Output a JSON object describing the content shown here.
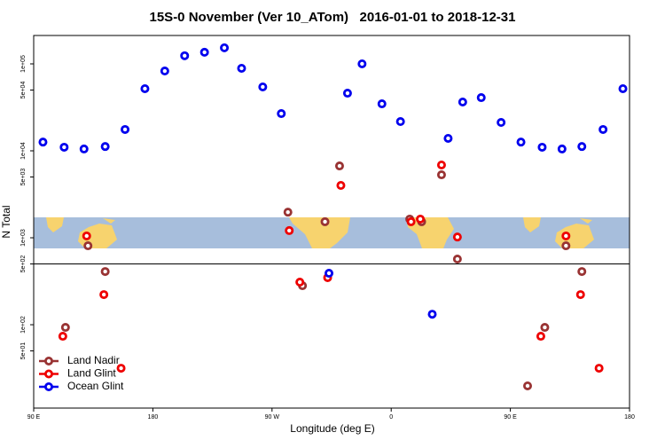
{
  "chart_data": {
    "type": "scatter",
    "title": "15S-0 November (Ver 10_ATom)   2016-01-01 to 2018-12-31",
    "xlabel": "Longitude (deg E)",
    "ylabel": "N Total",
    "xlim": [
      90,
      540
    ],
    "ylim": [
      11,
      212000
    ],
    "log_y": true,
    "legend": "lower left",
    "xticks": [
      {
        "value": 90,
        "label": "90 E"
      },
      {
        "value": 180,
        "label": "180"
      },
      {
        "value": 270,
        "label": "90 W"
      },
      {
        "value": 360,
        "label": "0"
      },
      {
        "value": 450,
        "label": "90 E"
      },
      {
        "value": 540,
        "label": "180"
      }
    ],
    "yticks": [
      {
        "value": 50,
        "label": "5e+01"
      },
      {
        "value": 100,
        "label": "1e+02"
      },
      {
        "value": 500,
        "label": "5e+02"
      },
      {
        "value": 1000,
        "label": "1e+03"
      },
      {
        "value": 5000,
        "label": "5e+03"
      },
      {
        "value": 10000,
        "label": "1e+04"
      },
      {
        "value": 50000,
        "label": "5e+04"
      },
      {
        "value": 100000,
        "label": "1e+05"
      }
    ],
    "series": [
      {
        "name": "Land Nadir",
        "color": "#993333",
        "x": [
          131,
          114,
          144,
          282,
          293,
          310,
          321,
          374,
          383,
          398,
          410,
          463,
          476,
          492,
          504
        ],
        "values": [
          809,
          93.2,
          409,
          1970,
          281,
          1530,
          6700,
          1640,
          1530,
          5300,
          569,
          19.8,
          93.2,
          809,
          409
        ]
      },
      {
        "name": "Land Glint",
        "color": "#ee0000",
        "x": [
          130,
          112,
          143,
          156,
          283,
          291,
          312,
          322,
          375,
          382,
          398,
          410,
          473,
          492,
          503,
          517
        ],
        "values": [
          1050,
          73.7,
          222,
          31.6,
          1210,
          309,
          348,
          4000,
          1530,
          1640,
          6870,
          1020,
          73.7,
          1050,
          222,
          31.6
        ]
      },
      {
        "name": "Ocean Glint",
        "color": "#0000ee",
        "x": [
          97,
          113,
          128,
          144,
          159,
          174,
          189,
          204,
          219,
          234,
          247,
          263,
          277,
          313,
          327,
          338,
          353,
          367,
          391,
          403,
          414,
          428,
          443,
          458,
          474,
          489,
          504,
          520,
          535
        ],
        "values": [
          12600,
          11000,
          10500,
          11200,
          17600,
          51800,
          82800,
          124000,
          136000,
          153000,
          88900,
          54300,
          26800,
          391,
          46000,
          100000,
          34700,
          21700,
          132,
          13900,
          36400,
          40900,
          21200,
          12600,
          11000,
          10500,
          11200,
          17600,
          51800
        ]
      }
    ]
  }
}
